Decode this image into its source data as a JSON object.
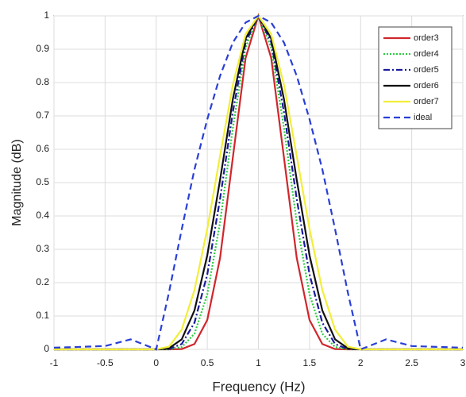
{
  "chart_data": {
    "type": "line",
    "x_label": "Frequency (Hz)",
    "y_label": "Magnitude (dB)",
    "x": [
      -1,
      -0.5,
      -0.25,
      0,
      0.125,
      0.25,
      0.375,
      0.5,
      0.625,
      0.75,
      0.875,
      1,
      1.125,
      1.25,
      1.375,
      1.5,
      1.625,
      1.75,
      1.875,
      2,
      2.25,
      2.5,
      3
    ],
    "series": [
      {
        "name": "order3",
        "color": "#d0262c",
        "style": "solid",
        "values": [
          0,
          0,
          0,
          0,
          0,
          0.001,
          0.016,
          0.088,
          0.274,
          0.575,
          0.874,
          1,
          0.874,
          0.575,
          0.274,
          0.088,
          0.016,
          0.001,
          0,
          0,
          0,
          0,
          0
        ]
      },
      {
        "name": "order4",
        "color": "#2ecc40",
        "style": "dotted",
        "values": [
          0,
          0,
          0,
          0,
          0,
          0.007,
          0.047,
          0.165,
          0.381,
          0.664,
          0.905,
          1,
          0.905,
          0.664,
          0.381,
          0.165,
          0.047,
          0.007,
          0,
          0,
          0,
          0,
          0
        ]
      },
      {
        "name": "order5",
        "color": "#1a1a9c",
        "style": "dashdot",
        "values": [
          0,
          0,
          0,
          0,
          0.001,
          0.016,
          0.08,
          0.225,
          0.451,
          0.712,
          0.921,
          1,
          0.921,
          0.712,
          0.451,
          0.225,
          0.08,
          0.016,
          0.001,
          0,
          0,
          0,
          0
        ]
      },
      {
        "name": "order6",
        "color": "#111111",
        "style": "solid",
        "values": [
          0,
          0,
          0,
          0,
          0.003,
          0.03,
          0.117,
          0.282,
          0.508,
          0.75,
          0.932,
          1,
          0.932,
          0.75,
          0.508,
          0.282,
          0.117,
          0.03,
          0.003,
          0,
          0,
          0,
          0
        ]
      },
      {
        "name": "order7",
        "color": "#f2ee3a",
        "style": "solid",
        "values": [
          0,
          0,
          0,
          0,
          0.008,
          0.059,
          0.178,
          0.361,
          0.58,
          0.793,
          0.945,
          1,
          0.945,
          0.793,
          0.58,
          0.361,
          0.178,
          0.059,
          0.008,
          0,
          0,
          0,
          0
        ]
      },
      {
        "name": "ideal",
        "color": "#2a3fd6",
        "style": "dashed",
        "values": [
          0.005,
          0.01,
          0.03,
          0,
          0.17,
          0.36,
          0.54,
          0.69,
          0.82,
          0.92,
          0.98,
          1,
          0.98,
          0.92,
          0.82,
          0.69,
          0.54,
          0.36,
          0.17,
          0,
          0.03,
          0.01,
          0.005
        ]
      }
    ],
    "xlim": [
      -1,
      3
    ],
    "xticks": [
      -1,
      -0.5,
      0,
      0.5,
      1,
      1.5,
      2,
      2.5,
      3
    ],
    "ylim": [
      0,
      1
    ],
    "yticks": [
      0,
      0.1,
      0.2,
      0.3,
      0.4,
      0.5,
      0.6,
      0.7,
      0.8,
      0.9,
      1
    ],
    "grid": true,
    "legend": "top-right"
  }
}
